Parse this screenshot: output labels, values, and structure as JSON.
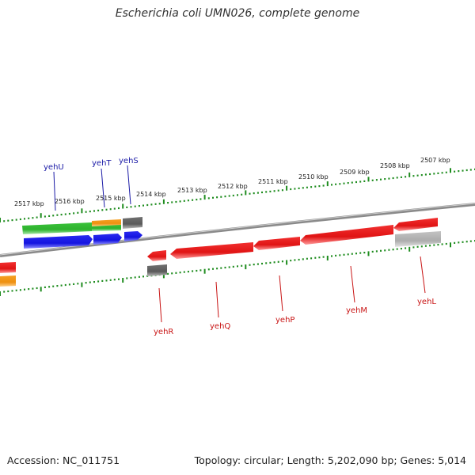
{
  "header": {
    "title": "Escherichia coli UMN026, complete genome"
  },
  "footer": {
    "accession": "Accession: NC_011751",
    "topology": "Topology: circular; Length: 5,202,090 bp; Genes: 5,014"
  },
  "colors": {
    "backbone": "#8a8a8a",
    "ticks": "#1e8c1e",
    "forward_label": "#1a1aa6",
    "reverse_label": "#c81414",
    "gene_red": "#ee1c1c",
    "gene_blue": "#1a1aee",
    "gene_green": "#3cc43c",
    "gene_orange": "#f39a1a",
    "gene_gray": "#6a6a6a",
    "gene_lightgray": "#b9b9b9"
  },
  "scale": {
    "labels": [
      "2517 kbp",
      "2516 kbp",
      "2515 kbp",
      "2514 kbp",
      "2513 kbp",
      "2512 kbp",
      "2511 kbp",
      "2510 kbp",
      "2509 kbp",
      "2508 kbp",
      "2507 kbp"
    ]
  },
  "genes": {
    "forward": [
      {
        "name": "yehU",
        "color": "blue"
      },
      {
        "name": "yehT",
        "color": "blue"
      },
      {
        "name": "yehS",
        "color": "blue"
      }
    ],
    "reverse": [
      {
        "name": "yehR",
        "color": "red"
      },
      {
        "name": "yehQ",
        "color": "red"
      },
      {
        "name": "yehP",
        "color": "red"
      },
      {
        "name": "yehM",
        "color": "red"
      },
      {
        "name": "yehL",
        "color": "red"
      }
    ]
  }
}
